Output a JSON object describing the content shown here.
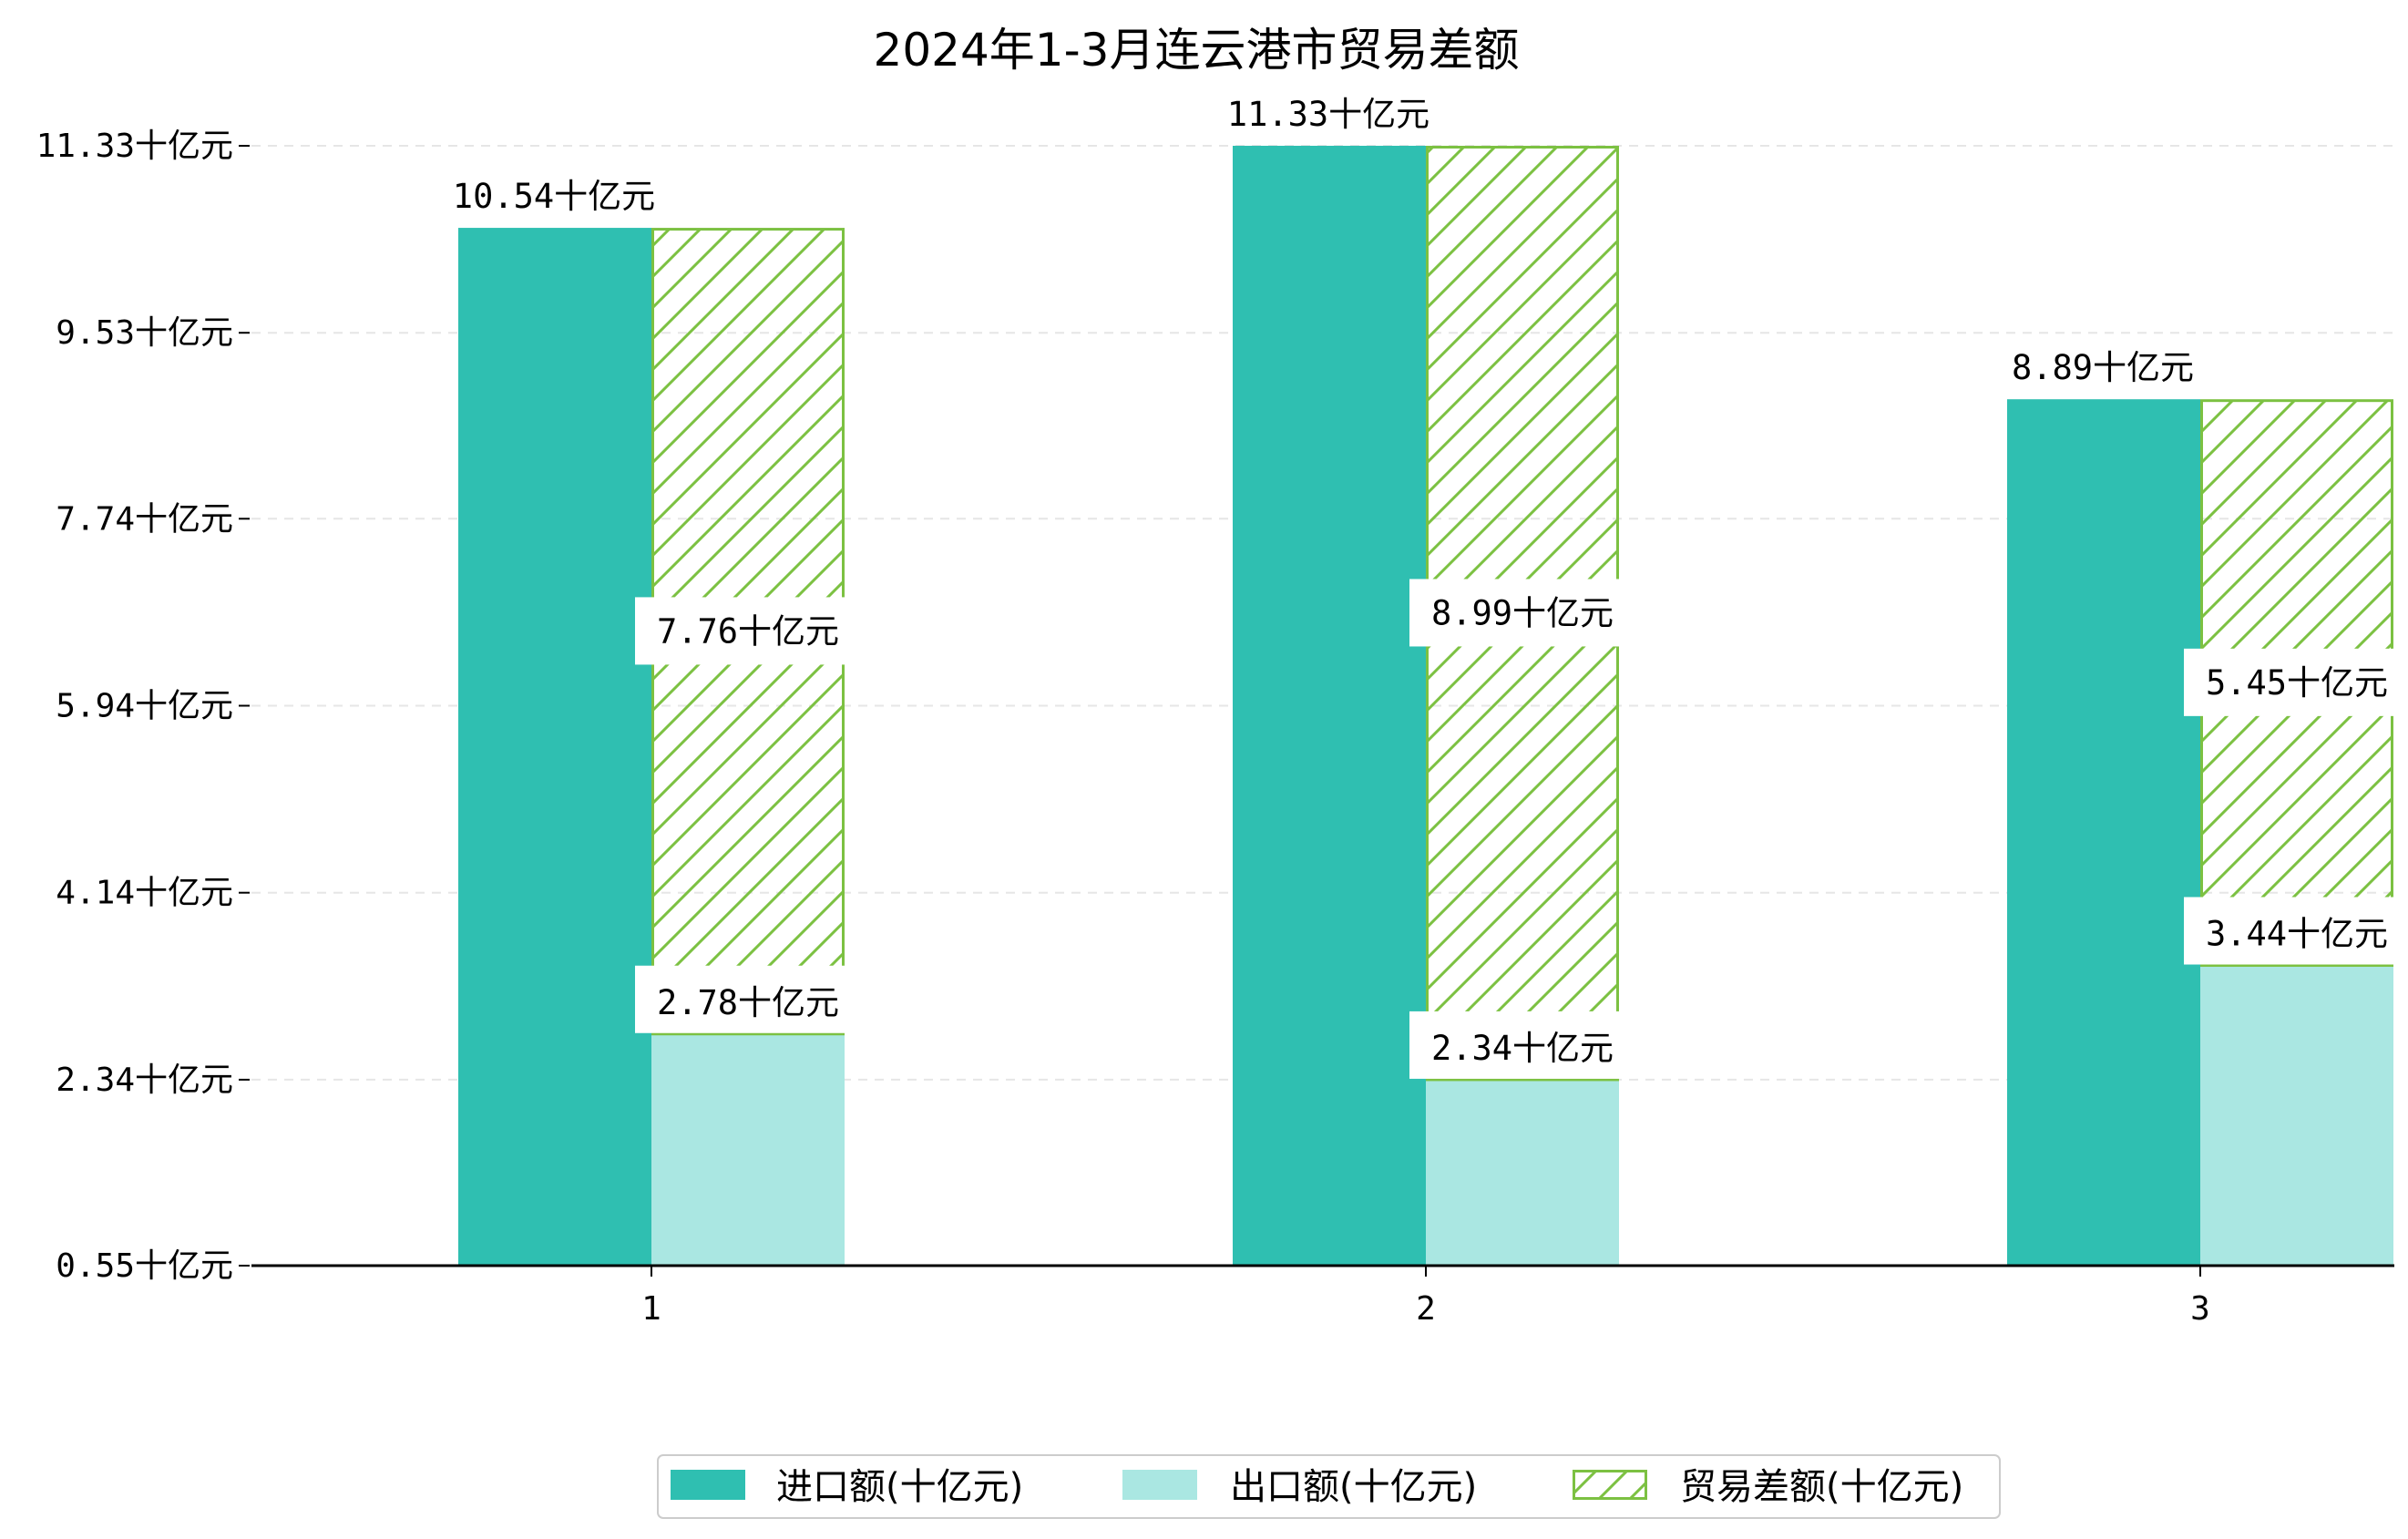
{
  "chart_data": {
    "type": "bar",
    "title": "2024年1-3月连云港市贸易差额",
    "categories": [
      "1",
      "2",
      "3"
    ],
    "unit": "十亿元",
    "ylim": [
      0.55,
      11.33
    ],
    "yticks": [
      0.55,
      2.34,
      4.14,
      5.94,
      7.74,
      9.53,
      11.33
    ],
    "ytick_labels": [
      "0.55十亿元",
      "2.34十亿元",
      "4.14十亿元",
      "5.94十亿元",
      "7.74十亿元",
      "9.53十亿元",
      "11.33十亿元"
    ],
    "grid": "horizontal dashed",
    "legend_position": "bottom-center",
    "series": [
      {
        "name": "进口额(十亿元)",
        "values": [
          10.54,
          11.33,
          8.89
        ],
        "labels": [
          "10.54十亿元",
          "11.33十亿元",
          "8.89十亿元"
        ],
        "color": "#2fbfb1"
      },
      {
        "name": "出口额(十亿元)",
        "values": [
          2.78,
          2.34,
          3.44
        ],
        "labels": [
          "2.78十亿元",
          "2.34十亿元",
          "3.44十亿元"
        ],
        "color": "#aae7e2"
      },
      {
        "name": "贸易差额(十亿元)",
        "values": [
          7.76,
          8.99,
          5.45
        ],
        "labels": [
          "7.76十亿元",
          "8.99十亿元",
          "5.45十亿元"
        ],
        "color": "#7cc142",
        "hatch": "diagonal"
      }
    ]
  }
}
